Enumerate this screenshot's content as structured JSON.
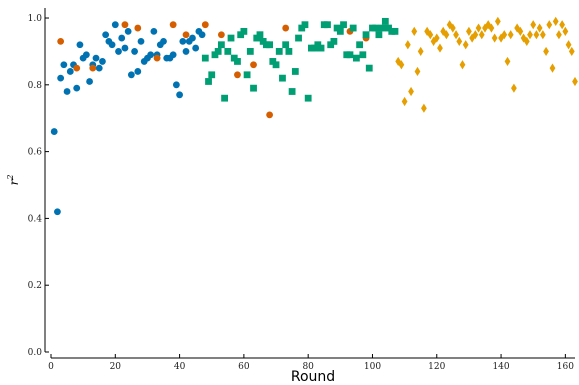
{
  "chart_data": {
    "type": "scatter",
    "xlabel": "Round",
    "ylabel": "r²",
    "ylabel_base": "r",
    "ylabel_sup": "2",
    "xlim": [
      0,
      163
    ],
    "ylim": [
      0,
      1.03
    ],
    "x_ticks": [
      0,
      20,
      40,
      60,
      80,
      100,
      120,
      140,
      160
    ],
    "x_tick_labels": [
      "0",
      "20",
      "40",
      "60",
      "80",
      "100",
      "120",
      "140",
      "160"
    ],
    "y_ticks": [
      0.0,
      0.2,
      0.4,
      0.6,
      0.8,
      1.0
    ],
    "y_tick_labels": [
      "0.0",
      "0.2",
      "0.4",
      "0.6",
      "0.8",
      "1.0"
    ],
    "grid": false,
    "legend": "none",
    "series": [
      {
        "color": "#0072B2",
        "marker": "circle",
        "points": [
          [
            1,
            0.66
          ],
          [
            2,
            0.42
          ],
          [
            3,
            0.82
          ],
          [
            4,
            0.86
          ],
          [
            5,
            0.78
          ],
          [
            6,
            0.84
          ],
          [
            7,
            0.86
          ],
          [
            8,
            0.79
          ],
          [
            9,
            0.92
          ],
          [
            10,
            0.88
          ],
          [
            11,
            0.89
          ],
          [
            12,
            0.81
          ],
          [
            13,
            0.86
          ],
          [
            14,
            0.88
          ],
          [
            15,
            0.85
          ],
          [
            16,
            0.87
          ],
          [
            17,
            0.95
          ],
          [
            18,
            0.93
          ],
          [
            19,
            0.92
          ],
          [
            20,
            0.98
          ],
          [
            21,
            0.9
          ],
          [
            22,
            0.94
          ],
          [
            23,
            0.91
          ],
          [
            24,
            0.96
          ],
          [
            25,
            0.83
          ],
          [
            26,
            0.9
          ],
          [
            27,
            0.84
          ],
          [
            28,
            0.93
          ],
          [
            29,
            0.87
          ],
          [
            30,
            0.88
          ],
          [
            31,
            0.89
          ],
          [
            32,
            0.96
          ],
          [
            33,
            0.89
          ],
          [
            34,
            0.92
          ],
          [
            35,
            0.93
          ],
          [
            36,
            0.88
          ],
          [
            37,
            0.88
          ],
          [
            38,
            0.89
          ],
          [
            39,
            0.8
          ],
          [
            40,
            0.77
          ],
          [
            41,
            0.93
          ],
          [
            42,
            0.9
          ],
          [
            43,
            0.93
          ],
          [
            44,
            0.94
          ],
          [
            45,
            0.91
          ],
          [
            46,
            0.96
          ],
          [
            47,
            0.95
          ]
        ]
      },
      {
        "color": "#D55E00",
        "marker": "circle",
        "points": [
          [
            3,
            0.93
          ],
          [
            8,
            0.85
          ],
          [
            13,
            0.85
          ],
          [
            23,
            0.98
          ],
          [
            27,
            0.97
          ],
          [
            33,
            0.88
          ],
          [
            38,
            0.98
          ],
          [
            42,
            0.95
          ],
          [
            48,
            0.98
          ],
          [
            53,
            0.95
          ],
          [
            58,
            0.83
          ],
          [
            63,
            0.86
          ],
          [
            68,
            0.71
          ],
          [
            73,
            0.97
          ],
          [
            93,
            0.96
          ],
          [
            98,
            0.94
          ]
        ]
      },
      {
        "color": "#009E73",
        "marker": "square",
        "points": [
          [
            48,
            0.88
          ],
          [
            49,
            0.81
          ],
          [
            50,
            0.83
          ],
          [
            51,
            0.89
          ],
          [
            52,
            0.9
          ],
          [
            53,
            0.92
          ],
          [
            54,
            0.76
          ],
          [
            55,
            0.9
          ],
          [
            56,
            0.94
          ],
          [
            57,
            0.88
          ],
          [
            58,
            0.87
          ],
          [
            59,
            0.95
          ],
          [
            60,
            0.96
          ],
          [
            61,
            0.83
          ],
          [
            62,
            0.9
          ],
          [
            63,
            0.79
          ],
          [
            64,
            0.94
          ],
          [
            65,
            0.95
          ],
          [
            66,
            0.93
          ],
          [
            67,
            0.92
          ],
          [
            68,
            0.92
          ],
          [
            69,
            0.87
          ],
          [
            70,
            0.86
          ],
          [
            71,
            0.9
          ],
          [
            72,
            0.82
          ],
          [
            73,
            0.92
          ],
          [
            74,
            0.9
          ],
          [
            75,
            0.78
          ],
          [
            76,
            0.84
          ],
          [
            77,
            0.94
          ],
          [
            78,
            0.97
          ],
          [
            79,
            0.98
          ],
          [
            80,
            0.76
          ],
          [
            81,
            0.91
          ],
          [
            82,
            0.91
          ],
          [
            83,
            0.92
          ],
          [
            84,
            0.91
          ],
          [
            85,
            0.98
          ],
          [
            86,
            0.98
          ],
          [
            87,
            0.92
          ],
          [
            88,
            0.93
          ],
          [
            89,
            0.97
          ],
          [
            90,
            0.96
          ],
          [
            91,
            0.98
          ],
          [
            92,
            0.89
          ],
          [
            93,
            0.89
          ],
          [
            94,
            0.97
          ],
          [
            95,
            0.88
          ],
          [
            96,
            0.92
          ],
          [
            97,
            0.89
          ],
          [
            98,
            0.95
          ],
          [
            99,
            0.85
          ],
          [
            100,
            0.97
          ],
          [
            101,
            0.97
          ],
          [
            102,
            0.95
          ],
          [
            103,
            0.97
          ],
          [
            104,
            0.99
          ],
          [
            105,
            0.97
          ],
          [
            106,
            0.96
          ],
          [
            107,
            0.96
          ]
        ]
      },
      {
        "color": "#E69F00",
        "marker": "diamond",
        "points": [
          [
            108,
            0.87
          ],
          [
            109,
            0.86
          ],
          [
            110,
            0.75
          ],
          [
            111,
            0.92
          ],
          [
            112,
            0.78
          ],
          [
            113,
            0.96
          ],
          [
            114,
            0.84
          ],
          [
            115,
            0.9
          ],
          [
            116,
            0.73
          ],
          [
            117,
            0.96
          ],
          [
            118,
            0.95
          ],
          [
            119,
            0.93
          ],
          [
            120,
            0.94
          ],
          [
            121,
            0.91
          ],
          [
            122,
            0.96
          ],
          [
            123,
            0.95
          ],
          [
            124,
            0.98
          ],
          [
            125,
            0.97
          ],
          [
            126,
            0.95
          ],
          [
            127,
            0.93
          ],
          [
            128,
            0.86
          ],
          [
            129,
            0.92
          ],
          [
            130,
            0.96
          ],
          [
            131,
            0.94
          ],
          [
            132,
            0.95
          ],
          [
            133,
            0.97
          ],
          [
            134,
            0.95
          ],
          [
            135,
            0.97
          ],
          [
            136,
            0.98
          ],
          [
            137,
            0.97
          ],
          [
            138,
            0.94
          ],
          [
            139,
            0.99
          ],
          [
            140,
            0.94
          ],
          [
            141,
            0.95
          ],
          [
            142,
            0.87
          ],
          [
            143,
            0.95
          ],
          [
            144,
            0.79
          ],
          [
            145,
            0.97
          ],
          [
            146,
            0.96
          ],
          [
            147,
            0.94
          ],
          [
            148,
            0.93
          ],
          [
            149,
            0.95
          ],
          [
            150,
            0.98
          ],
          [
            151,
            0.95
          ],
          [
            152,
            0.97
          ],
          [
            153,
            0.95
          ],
          [
            154,
            0.9
          ],
          [
            155,
            0.98
          ],
          [
            156,
            0.85
          ],
          [
            157,
            0.99
          ],
          [
            158,
            0.95
          ],
          [
            159,
            0.98
          ],
          [
            160,
            0.96
          ],
          [
            161,
            0.92
          ],
          [
            162,
            0.9
          ],
          [
            163,
            0.81
          ]
        ]
      }
    ]
  }
}
